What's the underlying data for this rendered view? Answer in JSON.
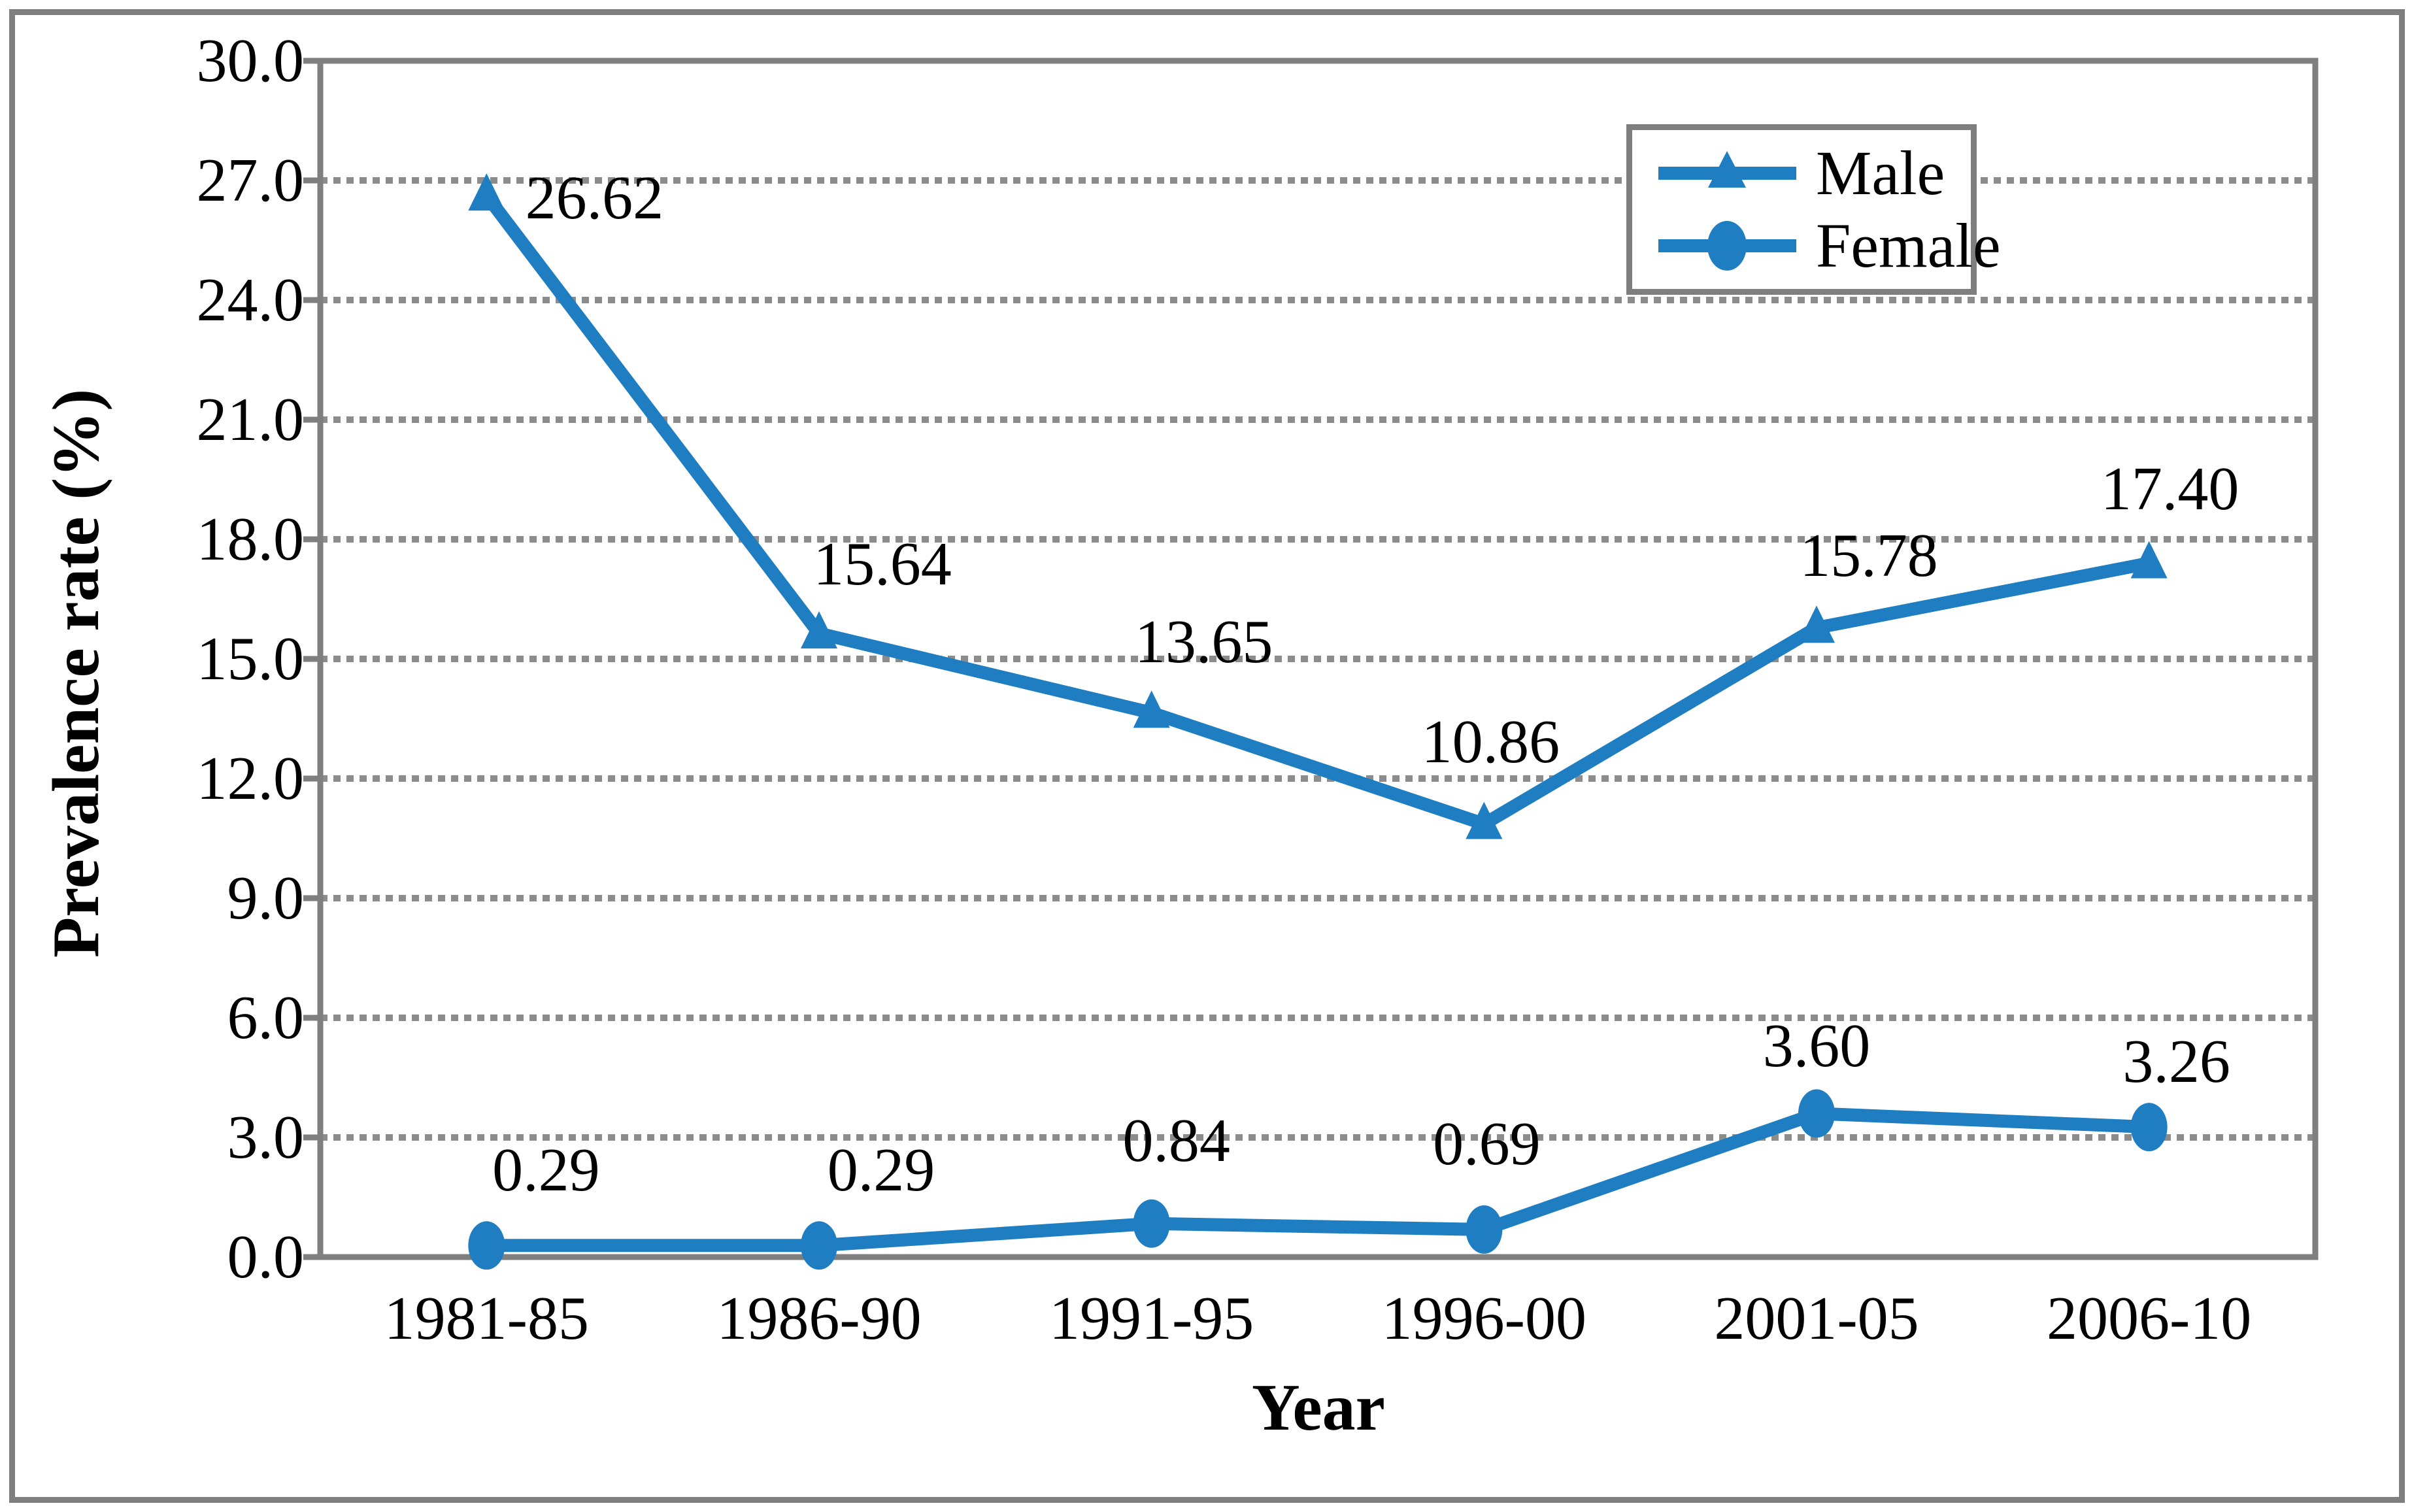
{
  "figure": {
    "background": "#FFFFFF",
    "border_color": "#7F7F7F",
    "grid_color": "#8C8C8C",
    "accent_color": "#1F7EC2"
  },
  "chart_data": {
    "type": "line",
    "title": "",
    "xlabel": "Year",
    "ylabel": "Prevalence rate (%)",
    "categories": [
      "1981-85",
      "1986-90",
      "1991-95",
      "1996-00",
      "2001-05",
      "2006-10"
    ],
    "y_axis": {
      "min": 0,
      "max": 30,
      "step": 3,
      "tick_labels": [
        "30.0",
        "27.0",
        "24.0",
        "21.0",
        "18.0",
        "15.0",
        "12.0",
        "9.0",
        "6.0",
        "3.0",
        "0.0"
      ]
    },
    "grid": "horizontal-dotted",
    "legend_position": "top-right",
    "series": [
      {
        "name": "Male",
        "marker": "triangle",
        "color": "#1F7EC2",
        "values": [
          26.62,
          15.64,
          13.65,
          10.86,
          15.78,
          17.4
        ],
        "labels": [
          "26.62",
          "15.64",
          "13.65",
          "10.86",
          "15.78",
          "17.40"
        ],
        "label_offsets": [
          [
            165,
            4
          ],
          [
            97,
            -106
          ],
          [
            80,
            -108
          ],
          [
            10,
            -126
          ],
          [
            80,
            -110
          ],
          [
            32,
            -114
          ]
        ]
      },
      {
        "name": "Female",
        "marker": "circle",
        "color": "#1F7EC2",
        "values": [
          0.29,
          0.29,
          0.84,
          0.69,
          3.6,
          3.26
        ],
        "labels": [
          "0.29",
          "0.29",
          "0.84",
          "0.69",
          "3.60",
          "3.26"
        ],
        "label_offsets": [
          [
            91,
            -115
          ],
          [
            95,
            -115
          ],
          [
            38,
            -127
          ],
          [
            4,
            -131
          ],
          [
            0,
            -103
          ],
          [
            42,
            -100
          ]
        ]
      }
    ]
  },
  "legend": {
    "items": [
      "Male",
      "Female"
    ]
  }
}
